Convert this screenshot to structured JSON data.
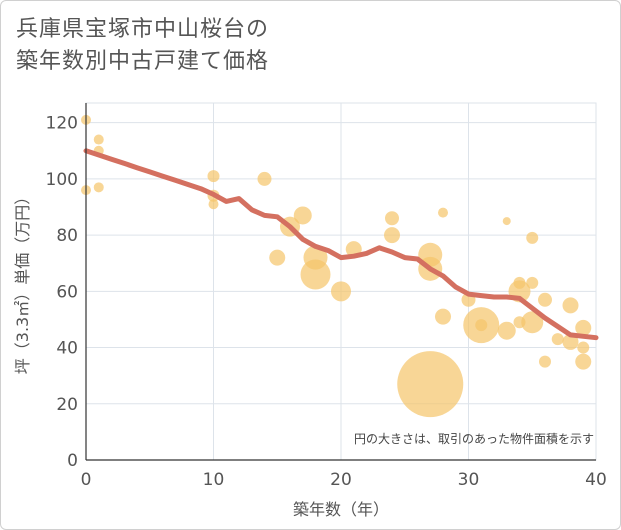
{
  "title": "兵庫県宝塚市中山桜台の\n築年数別中古戸建て価格",
  "chart_data": {
    "type": "scatter",
    "xlabel": "築年数（年）",
    "ylabel": "坪（3.3㎡）単価（万円）",
    "xlim": [
      0,
      40
    ],
    "ylim": [
      0,
      127
    ],
    "xticks": [
      0,
      10,
      20,
      30,
      40
    ],
    "yticks": [
      0,
      20,
      40,
      60,
      80,
      100,
      120
    ],
    "grid": true,
    "note": "円の大きさは、取引のあった物件面積を示す",
    "colors": {
      "points": "#f5c46a",
      "trend": "#d47060",
      "grid": "#dde3ea"
    },
    "points": [
      {
        "x": 0,
        "y": 121,
        "s": 5
      },
      {
        "x": 0,
        "y": 96,
        "s": 5
      },
      {
        "x": 1,
        "y": 114,
        "s": 5
      },
      {
        "x": 1,
        "y": 110,
        "s": 5
      },
      {
        "x": 1,
        "y": 97,
        "s": 5
      },
      {
        "x": 10,
        "y": 101,
        "s": 6
      },
      {
        "x": 10,
        "y": 94,
        "s": 6
      },
      {
        "x": 10,
        "y": 91,
        "s": 5
      },
      {
        "x": 14,
        "y": 100,
        "s": 7
      },
      {
        "x": 15,
        "y": 72,
        "s": 8
      },
      {
        "x": 16,
        "y": 83,
        "s": 10
      },
      {
        "x": 17,
        "y": 87,
        "s": 9
      },
      {
        "x": 18,
        "y": 72,
        "s": 12
      },
      {
        "x": 18,
        "y": 66,
        "s": 15
      },
      {
        "x": 20,
        "y": 60,
        "s": 10
      },
      {
        "x": 21,
        "y": 75,
        "s": 8
      },
      {
        "x": 24,
        "y": 86,
        "s": 7
      },
      {
        "x": 24,
        "y": 80,
        "s": 8
      },
      {
        "x": 27,
        "y": 73,
        "s": 12
      },
      {
        "x": 27,
        "y": 68,
        "s": 12
      },
      {
        "x": 27,
        "y": 27,
        "s": 33
      },
      {
        "x": 28,
        "y": 88,
        "s": 5
      },
      {
        "x": 28,
        "y": 51,
        "s": 8
      },
      {
        "x": 30,
        "y": 57,
        "s": 7
      },
      {
        "x": 31,
        "y": 48,
        "s": 18
      },
      {
        "x": 31,
        "y": 48,
        "s": 6
      },
      {
        "x": 33,
        "y": 85,
        "s": 4
      },
      {
        "x": 33,
        "y": 46,
        "s": 9
      },
      {
        "x": 34,
        "y": 63,
        "s": 6
      },
      {
        "x": 34,
        "y": 60,
        "s": 11
      },
      {
        "x": 34,
        "y": 49,
        "s": 6
      },
      {
        "x": 35,
        "y": 79,
        "s": 6
      },
      {
        "x": 35,
        "y": 63,
        "s": 6
      },
      {
        "x": 35,
        "y": 49,
        "s": 11
      },
      {
        "x": 36,
        "y": 57,
        "s": 7
      },
      {
        "x": 36,
        "y": 35,
        "s": 6
      },
      {
        "x": 37,
        "y": 43,
        "s": 6
      },
      {
        "x": 38,
        "y": 55,
        "s": 8
      },
      {
        "x": 38,
        "y": 42,
        "s": 8
      },
      {
        "x": 39,
        "y": 47,
        "s": 8
      },
      {
        "x": 39,
        "y": 40,
        "s": 6
      },
      {
        "x": 39,
        "y": 35,
        "s": 8
      }
    ],
    "trend": {
      "x": [
        0,
        1,
        2,
        3,
        4,
        5,
        6,
        7,
        8,
        9,
        10,
        11,
        12,
        13,
        14,
        15,
        16,
        17,
        18,
        19,
        20,
        21,
        22,
        23,
        24,
        25,
        26,
        27,
        28,
        29,
        30,
        31,
        32,
        33,
        34,
        35,
        36,
        37,
        38,
        39,
        40
      ],
      "y": [
        110,
        108.5,
        107,
        105.5,
        104,
        102.5,
        101,
        99.5,
        98,
        96.5,
        94.5,
        92,
        93,
        89,
        87,
        86.5,
        83,
        78.5,
        76,
        74.5,
        72,
        72.5,
        73.5,
        75.5,
        74,
        72,
        71.5,
        68,
        65.5,
        61.5,
        59,
        58.5,
        58,
        58,
        57.5,
        54,
        50.5,
        47.5,
        44.5,
        44,
        43.5
      ]
    }
  }
}
